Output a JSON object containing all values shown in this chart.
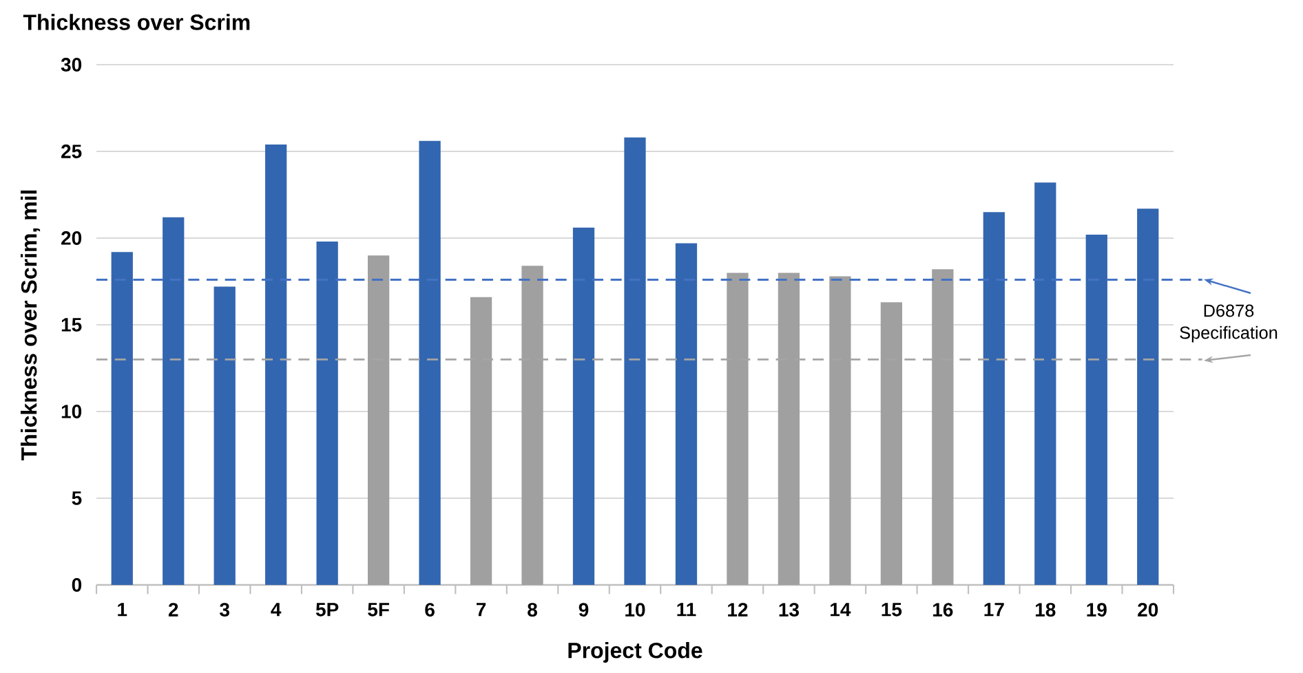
{
  "chart_data": {
    "type": "bar",
    "title": "Thickness over Scrim",
    "xlabel": "Project Code",
    "ylabel": "Thickness over Scrim, mil",
    "categories": [
      "1",
      "2",
      "3",
      "4",
      "5P",
      "5F",
      "6",
      "7",
      "8",
      "9",
      "10",
      "11",
      "12",
      "13",
      "14",
      "15",
      "16",
      "17",
      "18",
      "19",
      "20"
    ],
    "values": [
      19.2,
      21.2,
      17.2,
      25.4,
      19.8,
      19.0,
      25.6,
      16.6,
      18.4,
      20.6,
      25.8,
      19.7,
      18.0,
      18.0,
      17.8,
      16.3,
      18.2,
      21.5,
      23.2,
      20.2,
      21.7
    ],
    "colors": [
      "#3366b0",
      "#3366b0",
      "#3366b0",
      "#3366b0",
      "#3366b0",
      "#a0a0a0",
      "#3366b0",
      "#a0a0a0",
      "#a0a0a0",
      "#3366b0",
      "#3366b0",
      "#3366b0",
      "#a0a0a0",
      "#a0a0a0",
      "#a0a0a0",
      "#a0a0a0",
      "#a0a0a0",
      "#3366b0",
      "#3366b0",
      "#3366b0",
      "#3366b0"
    ],
    "ylim": [
      0,
      30
    ],
    "yticks": [
      0,
      5,
      10,
      15,
      20,
      25,
      30
    ],
    "grid": "y",
    "ref_lines": [
      {
        "axis": "y",
        "value": 17.6,
        "color": "#4472c4",
        "line_style": "dashed"
      },
      {
        "axis": "y",
        "value": 13.0,
        "color": "#a5a5a5",
        "line_style": "dashed"
      }
    ],
    "annotations": [
      "D6878 Specification"
    ]
  }
}
